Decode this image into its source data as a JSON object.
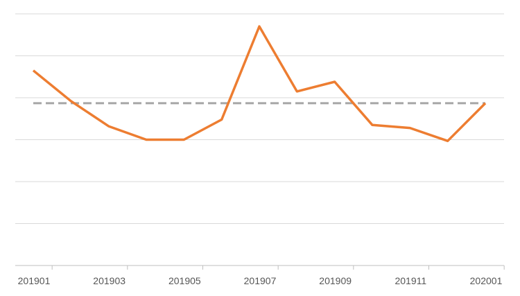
{
  "chart_data": {
    "type": "line",
    "title": "",
    "xlabel": "",
    "ylabel": "",
    "grid": true,
    "legend": "none",
    "x": [
      "201901",
      "201902",
      "201903",
      "201904",
      "201905",
      "201906",
      "201907",
      "201908",
      "201909",
      "201910",
      "201911",
      "201912",
      "202001"
    ],
    "x_tick_labels": [
      "201901",
      "201903",
      "201905",
      "201907",
      "201909",
      "201911",
      "202001"
    ],
    "y_gridline_count": 6,
    "series": [
      {
        "values": [
          4.65,
          3.92,
          3.32,
          3.0,
          3.0,
          3.48,
          5.7,
          4.15,
          4.38,
          3.35,
          3.28,
          2.97,
          3.87
        ],
        "color": "#ED7D31",
        "style": "solid"
      },
      {
        "values": [
          3.87,
          3.87,
          3.87,
          3.87,
          3.87,
          3.87,
          3.87,
          3.87,
          3.87,
          3.87,
          3.87,
          3.87,
          3.87
        ],
        "color": "#A6A6A6",
        "style": "dashed"
      }
    ],
    "ylim": [
      0,
      6
    ]
  }
}
